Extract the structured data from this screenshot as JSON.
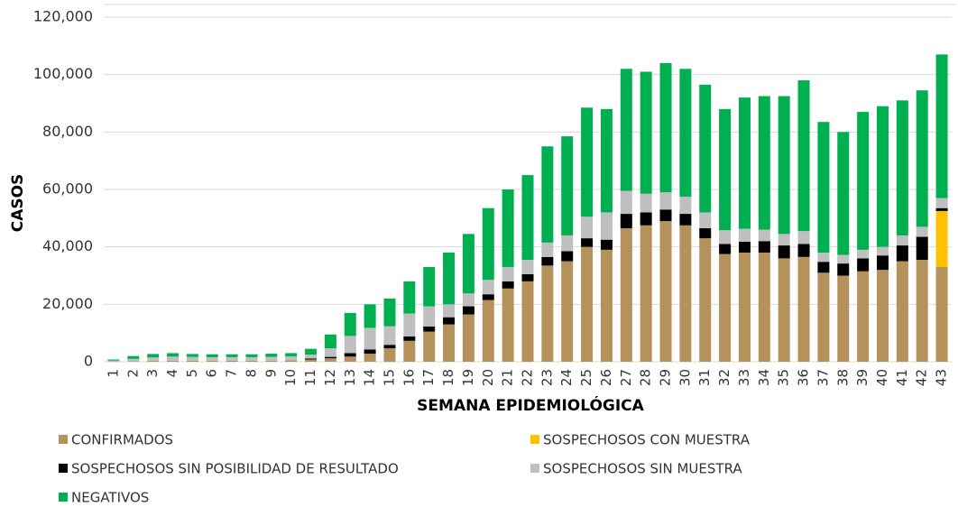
{
  "chart_data": {
    "type": "stacked_bar",
    "y_label": "CASOS",
    "x_label": "SEMANA EPIDEMIOLÓGICA",
    "categories": [
      "1",
      "2",
      "3",
      "4",
      "5",
      "6",
      "7",
      "8",
      "9",
      "10",
      "11",
      "12",
      "13",
      "14",
      "15",
      "16",
      "17",
      "18",
      "19",
      "20",
      "21",
      "22",
      "23",
      "24",
      "25",
      "26",
      "27",
      "28",
      "29",
      "30",
      "31",
      "32",
      "33",
      "34",
      "35",
      "36",
      "37",
      "38",
      "39",
      "40",
      "41",
      "42",
      "43"
    ],
    "series": [
      {
        "name": "CONFIRMADOS",
        "color": "#b5925b",
        "values": [
          100,
          200,
          300,
          400,
          400,
          400,
          400,
          400,
          400,
          500,
          800,
          1200,
          1800,
          2800,
          4700,
          7300,
          10500,
          13000,
          16500,
          21500,
          25500,
          28000,
          33500,
          35000,
          40000,
          39000,
          46500,
          47500,
          49000,
          47500,
          43000,
          37500,
          38000,
          38000,
          36000,
          36500,
          31000,
          30000,
          31500,
          32000,
          35000,
          35500,
          33000
        ]
      },
      {
        "name": "SOSPECHOSOS CON MUESTRA",
        "color": "#ffc000",
        "values": [
          0,
          0,
          0,
          0,
          0,
          0,
          0,
          0,
          0,
          0,
          0,
          0,
          0,
          0,
          0,
          0,
          0,
          0,
          0,
          0,
          0,
          0,
          0,
          0,
          0,
          0,
          0,
          0,
          0,
          0,
          0,
          0,
          0,
          0,
          0,
          0,
          0,
          0,
          0,
          0,
          0,
          0,
          19500
        ]
      },
      {
        "name": "SOSPECHOSOS SIN POSIBILIDAD DE RESULTADO",
        "color": "#000000",
        "values": [
          0,
          0,
          0,
          0,
          0,
          0,
          0,
          0,
          0,
          0,
          300,
          500,
          1200,
          1500,
          1200,
          1500,
          1800,
          2500,
          2800,
          2000,
          2500,
          2500,
          3000,
          3500,
          3000,
          3500,
          5000,
          4500,
          4000,
          4000,
          3500,
          3500,
          3800,
          4000,
          4500,
          4500,
          3800,
          4200,
          4500,
          5000,
          5500,
          8000,
          1000
        ]
      },
      {
        "name": "SOSPECHOSOS SIN MUESTRA",
        "color": "#bfbfbf",
        "values": [
          300,
          800,
          1200,
          1400,
          1300,
          1200,
          1200,
          1200,
          1300,
          1400,
          1400,
          3000,
          6000,
          7500,
          6500,
          8000,
          7000,
          4500,
          4500,
          5000,
          5000,
          5000,
          5000,
          5500,
          7500,
          9500,
          8000,
          6500,
          6000,
          6000,
          5500,
          4800,
          4500,
          4000,
          4000,
          4500,
          3200,
          3000,
          3000,
          3000,
          3500,
          3500,
          3500
        ]
      },
      {
        "name": "NEGATIVOS",
        "color": "#00b050",
        "values": [
          400,
          1000,
          1200,
          1200,
          1000,
          1000,
          1000,
          1000,
          1100,
          1100,
          2000,
          4800,
          8000,
          8200,
          9600,
          11200,
          13700,
          18000,
          20700,
          25000,
          27000,
          29500,
          33500,
          34500,
          38000,
          36000,
          42500,
          42500,
          45000,
          44500,
          44500,
          42200,
          45700,
          46500,
          48000,
          52500,
          45500,
          42800,
          48000,
          49000,
          47000,
          47500,
          50000
        ]
      }
    ],
    "ylim": [
      0,
      120000
    ],
    "yticks": [
      0,
      {
        "value": 20000,
        "label": "20,000"
      },
      {
        "value": 40000,
        "label": "40,000"
      },
      {
        "value": 60000,
        "label": "60,000"
      },
      {
        "value": 80000,
        "label": "80,000"
      },
      {
        "value": 100000,
        "label": "100,000"
      },
      {
        "value": 120000,
        "label": "120,000"
      }
    ],
    "grid": true
  }
}
